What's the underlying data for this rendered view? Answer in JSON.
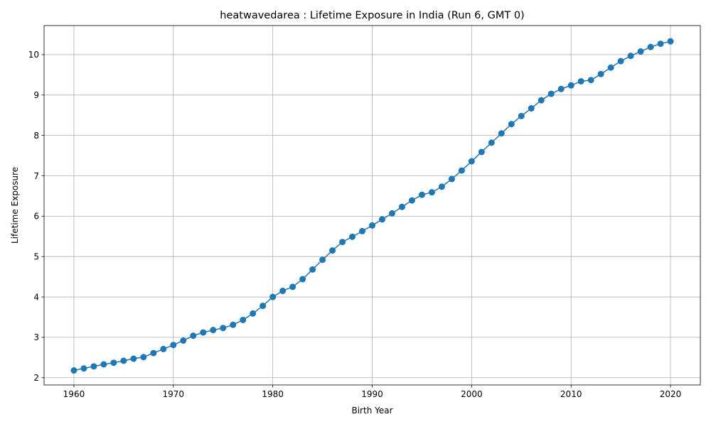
{
  "chart_data": {
    "type": "line",
    "title": "heatwavedarea : Lifetime Exposure in India (Run 6, GMT 0)",
    "xlabel": "Birth Year",
    "ylabel": "Lifetime Exposure",
    "xlim": [
      1957,
      2023
    ],
    "ylim": [
      1.82,
      10.72
    ],
    "x_ticks": [
      1960,
      1970,
      1980,
      1990,
      2000,
      2010,
      2020
    ],
    "y_ticks": [
      2,
      3,
      4,
      5,
      6,
      7,
      8,
      9,
      10
    ],
    "grid": true,
    "line_color": "#1f77b4",
    "marker": "circle",
    "x": [
      1960,
      1961,
      1962,
      1963,
      1964,
      1965,
      1966,
      1967,
      1968,
      1969,
      1970,
      1971,
      1972,
      1973,
      1974,
      1975,
      1976,
      1977,
      1978,
      1979,
      1980,
      1981,
      1982,
      1983,
      1984,
      1985,
      1986,
      1987,
      1988,
      1989,
      1990,
      1991,
      1992,
      1993,
      1994,
      1995,
      1996,
      1997,
      1998,
      1999,
      2000,
      2001,
      2002,
      2003,
      2004,
      2005,
      2006,
      2007,
      2008,
      2009,
      2010,
      2011,
      2012,
      2013,
      2014,
      2015,
      2016,
      2017,
      2018,
      2019,
      2020
    ],
    "y": [
      2.18,
      2.23,
      2.28,
      2.33,
      2.37,
      2.42,
      2.47,
      2.51,
      2.61,
      2.71,
      2.81,
      2.92,
      3.04,
      3.12,
      3.18,
      3.23,
      3.31,
      3.43,
      3.59,
      3.78,
      4.0,
      4.15,
      4.25,
      4.44,
      4.68,
      4.92,
      5.15,
      5.36,
      5.49,
      5.63,
      5.77,
      5.92,
      6.07,
      6.23,
      6.39,
      6.53,
      6.59,
      6.73,
      6.92,
      7.13,
      7.36,
      7.59,
      7.82,
      8.05,
      8.28,
      8.48,
      8.67,
      8.87,
      9.03,
      9.15,
      9.24,
      9.34,
      9.37,
      9.52,
      9.68,
      9.84,
      9.97,
      10.08,
      10.19,
      10.27,
      10.33
    ]
  }
}
